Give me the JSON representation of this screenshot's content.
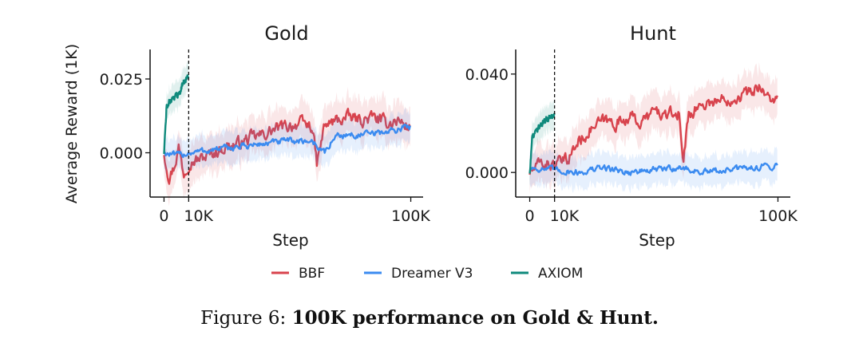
{
  "legend": [
    {
      "name": "BBF",
      "color": "#d8434d"
    },
    {
      "name": "Dreamer V3",
      "color": "#3b8bf0"
    },
    {
      "name": "AXIOM",
      "color": "#0f8a7c"
    }
  ],
  "shared": {
    "ylabel": "Average Reward (1K)",
    "xlabel": "Step",
    "vline_x": 10000,
    "xtick_values": [
      0,
      10000,
      100000
    ],
    "xtick_labels": [
      "0",
      "10K",
      "100K"
    ],
    "xlim": [
      -5000,
      105000
    ]
  },
  "chart_data": [
    {
      "type": "line",
      "title": "Gold",
      "xlabel": "Step",
      "ylabel": "Average Reward (1K)",
      "xlim": [
        -5000,
        105000
      ],
      "ylim": [
        -0.015,
        0.035
      ],
      "yticks": [
        0.0,
        0.025
      ],
      "ytick_labels": [
        "0.000",
        "0.025"
      ],
      "series": [
        {
          "name": "BBF",
          "x": [
            0,
            2000,
            4000,
            6000,
            8000,
            10000,
            15000,
            20000,
            25000,
            30000,
            35000,
            40000,
            45000,
            50000,
            55000,
            60000,
            62000,
            65000,
            70000,
            75000,
            80000,
            85000,
            90000,
            95000,
            100000
          ],
          "values": [
            0.0,
            -0.008,
            -0.005,
            0.002,
            -0.007,
            -0.003,
            -0.002,
            0.0,
            0.002,
            0.003,
            0.005,
            0.006,
            0.008,
            0.009,
            0.01,
            0.009,
            -0.004,
            0.009,
            0.011,
            0.012,
            0.011,
            0.012,
            0.01,
            0.011,
            0.008
          ]
        },
        {
          "name": "Dreamer V3",
          "x": [
            0,
            5000,
            10000,
            20000,
            30000,
            40000,
            50000,
            60000,
            65000,
            70000,
            80000,
            90000,
            100000
          ],
          "values": [
            0.0,
            -0.001,
            0.0,
            0.001,
            0.002,
            0.003,
            0.004,
            0.004,
            0.0,
            0.006,
            0.006,
            0.007,
            0.009
          ]
        },
        {
          "name": "AXIOM",
          "x": [
            0,
            1000,
            2500,
            4000,
            6000,
            8000,
            10000
          ],
          "values": [
            0.0,
            0.015,
            0.018,
            0.019,
            0.02,
            0.024,
            0.026
          ]
        }
      ]
    },
    {
      "type": "line",
      "title": "Hunt",
      "xlabel": "Step",
      "ylabel": "",
      "xlim": [
        -5000,
        105000
      ],
      "ylim": [
        -0.01,
        0.05
      ],
      "yticks": [
        0.0,
        0.04
      ],
      "ytick_labels": [
        "0.000",
        "0.040"
      ],
      "series": [
        {
          "name": "BBF",
          "x": [
            0,
            5000,
            10000,
            15000,
            20000,
            25000,
            30000,
            35000,
            40000,
            45000,
            50000,
            55000,
            60000,
            62000,
            64000,
            70000,
            80000,
            90000,
            93000,
            95000,
            100000
          ],
          "values": [
            0.0,
            0.004,
            0.003,
            0.005,
            0.013,
            0.018,
            0.021,
            0.02,
            0.023,
            0.02,
            0.025,
            0.023,
            0.024,
            0.005,
            0.024,
            0.028,
            0.03,
            0.033,
            0.036,
            0.031,
            0.029
          ]
        },
        {
          "name": "Dreamer V3",
          "x": [
            0,
            10000,
            20000,
            30000,
            40000,
            50000,
            60000,
            70000,
            80000,
            90000,
            100000
          ],
          "values": [
            0.002,
            0.001,
            0.0,
            0.002,
            0.0,
            0.001,
            0.002,
            0.0,
            0.001,
            0.002,
            0.003
          ]
        },
        {
          "name": "AXIOM",
          "x": [
            0,
            1000,
            2500,
            4000,
            6000,
            8000,
            10000
          ],
          "values": [
            0.0,
            0.014,
            0.017,
            0.019,
            0.021,
            0.023,
            0.024
          ]
        }
      ]
    }
  ],
  "caption": {
    "prefix": "Figure 6: ",
    "bold": "100K performance on Gold & Hunt."
  }
}
